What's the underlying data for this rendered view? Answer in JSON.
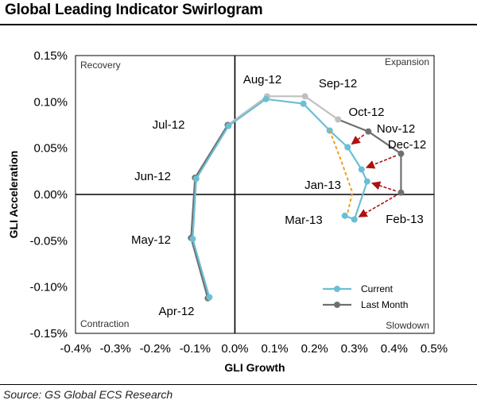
{
  "title": "Global Leading Indicator Swirlogram",
  "source": "Source: GS Global ECS Research",
  "chart_data": {
    "type": "line",
    "xlabel": "GLI Growth",
    "ylabel": "GLI Acceleration",
    "xlim": [
      -0.4,
      0.5
    ],
    "ylim": [
      -0.15,
      0.15
    ],
    "x_ticks": [
      "-0.4%",
      "-0.3%",
      "-0.2%",
      "-0.1%",
      "0.0%",
      "0.1%",
      "0.2%",
      "0.3%",
      "0.4%",
      "0.5%"
    ],
    "y_ticks": [
      "0.15%",
      "0.10%",
      "0.05%",
      "0.00%",
      "-0.05%",
      "-0.10%",
      "-0.15%"
    ],
    "quadrants": {
      "top_left": "Recovery",
      "top_right": "Expansion",
      "bottom_left": "Contraction",
      "bottom_right": "Slowdown"
    },
    "legend": {
      "position": "bottom-right",
      "entries": [
        "Current",
        "Last Month"
      ]
    },
    "series": [
      {
        "name": "Last Month",
        "color": "#707070",
        "highlight_color": "#c0c0c0",
        "points": [
          {
            "label": "Apr-12",
            "x": -0.068,
            "y": -0.112
          },
          {
            "label": "May-12",
            "x": -0.11,
            "y": -0.047
          },
          {
            "label": "Jun-12",
            "x": -0.1,
            "y": 0.018
          },
          {
            "label": "Jul-12",
            "x": -0.018,
            "y": 0.075
          },
          {
            "label": "Aug-12",
            "x": 0.081,
            "y": 0.106
          },
          {
            "label": "Sep-12",
            "x": 0.176,
            "y": 0.106
          },
          {
            "label": "Oct-12",
            "x": 0.259,
            "y": 0.081
          },
          {
            "label": "Nov-12",
            "x": 0.335,
            "y": 0.068
          },
          {
            "label": "Dec-12",
            "x": 0.417,
            "y": 0.044
          },
          {
            "label": "Jan-13",
            "x": 0.417,
            "y": 0.002
          }
        ]
      },
      {
        "name": "Current",
        "color": "#6bbfd4",
        "points": [
          {
            "label": "Apr-12",
            "x": -0.064,
            "y": -0.111
          },
          {
            "label": "May-12",
            "x": -0.106,
            "y": -0.048
          },
          {
            "label": "Jun-12",
            "x": -0.097,
            "y": 0.017
          },
          {
            "label": "Jul-12",
            "x": -0.016,
            "y": 0.074
          },
          {
            "label": "Aug-12",
            "x": 0.078,
            "y": 0.103
          },
          {
            "label": "Sep-12",
            "x": 0.172,
            "y": 0.098
          },
          {
            "label": "Oct-12",
            "x": 0.238,
            "y": 0.069
          },
          {
            "label": "Nov-12",
            "x": 0.283,
            "y": 0.051
          },
          {
            "label": "Dec-12",
            "x": 0.318,
            "y": 0.027
          },
          {
            "label": "Jan-13",
            "x": 0.332,
            "y": 0.014
          },
          {
            "label": "Feb-13",
            "x": 0.3,
            "y": -0.027
          },
          {
            "label": "Mar-13",
            "x": 0.276,
            "y": -0.023
          }
        ]
      }
    ],
    "projection": {
      "color": "#f0a020",
      "points": [
        [
          0.238,
          0.069
        ],
        [
          0.268,
          0.035
        ],
        [
          0.295,
          0.002
        ],
        [
          0.283,
          -0.02
        ]
      ]
    },
    "revision_arrows": {
      "color": "#b01010",
      "pairs": [
        [
          [
            0.335,
            0.068
          ],
          [
            0.283,
            0.051
          ]
        ],
        [
          [
            0.417,
            0.044
          ],
          [
            0.318,
            0.027
          ]
        ],
        [
          [
            0.417,
            0.002
          ],
          [
            0.332,
            0.014
          ]
        ],
        [
          [
            0.417,
            0.002
          ],
          [
            0.3,
            -0.027
          ]
        ]
      ]
    },
    "point_labels": [
      "Apr-12",
      "May-12",
      "Jun-12",
      "Jul-12",
      "Aug-12",
      "Sep-12",
      "Oct-12",
      "Nov-12",
      "Dec-12",
      "Jan-13",
      "Feb-13",
      "Mar-13"
    ]
  }
}
